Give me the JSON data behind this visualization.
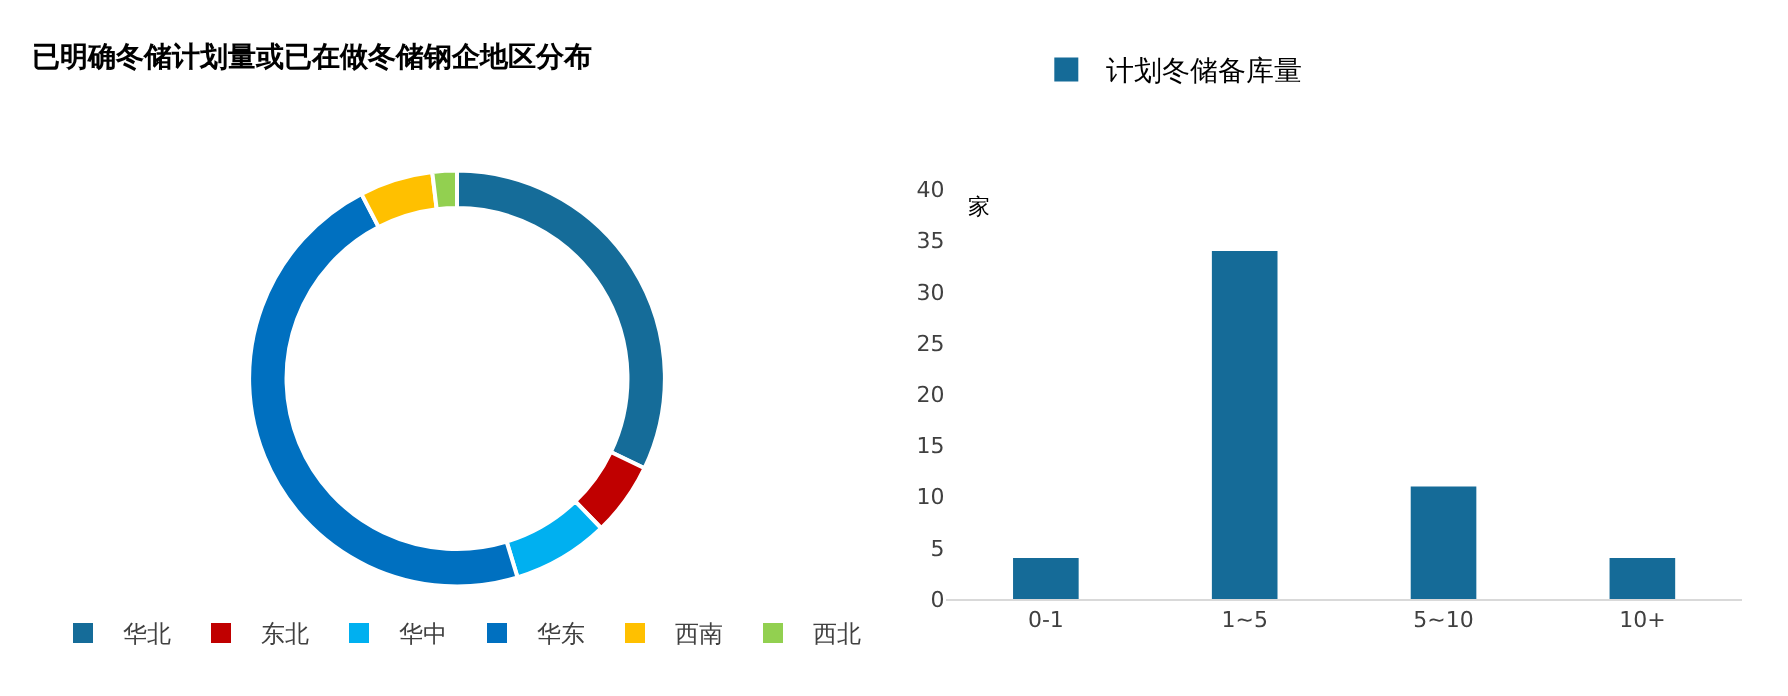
{
  "chart_data": [
    {
      "type": "donut",
      "title": "已明确冬储计划量或已在做冬储钢企地区分布",
      "categories": [
        "华北",
        "东北",
        "华中",
        "华东",
        "西南",
        "西北"
      ],
      "values": [
        32.1,
        5.7,
        7.5,
        47.1,
        5.7,
        1.9
      ],
      "colors": [
        "#156c99",
        "#c00000",
        "#00b0f0",
        "#0070c0",
        "#ffc000",
        "#92d050"
      ],
      "legend": "bottom"
    },
    {
      "type": "bar",
      "categories": [
        "0-1",
        "1~5",
        "5~10",
        "10+"
      ],
      "series": [
        {
          "name": "计划冬储备库量",
          "color": "#156b98",
          "values": [
            4,
            34,
            11,
            4
          ]
        }
      ],
      "ylabel": "家",
      "ylim": [
        0,
        40
      ],
      "yticks": [
        0,
        5,
        10,
        15,
        20,
        25,
        30,
        35,
        40
      ],
      "legend": "top"
    }
  ]
}
